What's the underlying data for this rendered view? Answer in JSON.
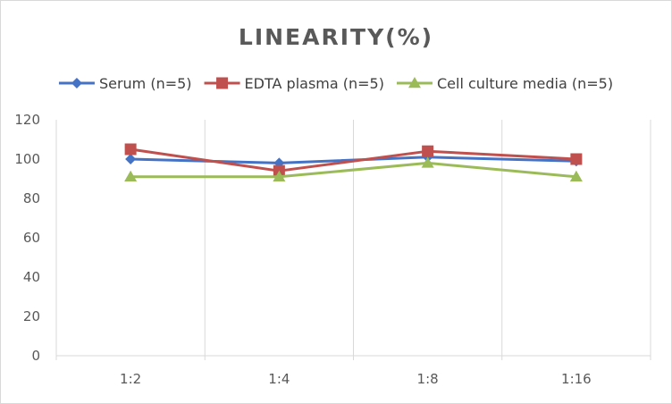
{
  "chart_data": {
    "type": "line",
    "title": "LINEARITY(%)",
    "xlabel": "",
    "ylabel": "",
    "categories": [
      "1:2",
      "1:4",
      "1:8",
      "1:16"
    ],
    "ylim": [
      0,
      120
    ],
    "yticks": [
      0,
      20,
      40,
      60,
      80,
      100,
      120
    ],
    "grid": "vertical",
    "legend_position": "top",
    "series": [
      {
        "name": "Serum (n=5)",
        "values": [
          100,
          98,
          101,
          99
        ],
        "color": "#4472c4",
        "marker": "diamond"
      },
      {
        "name": "EDTA plasma (n=5)",
        "values": [
          105,
          94,
          104,
          100
        ],
        "color": "#c0504d",
        "marker": "square"
      },
      {
        "name": "Cell culture media (n=5)",
        "values": [
          91,
          91,
          98,
          91
        ],
        "color": "#9bbb59",
        "marker": "triangle"
      }
    ]
  }
}
